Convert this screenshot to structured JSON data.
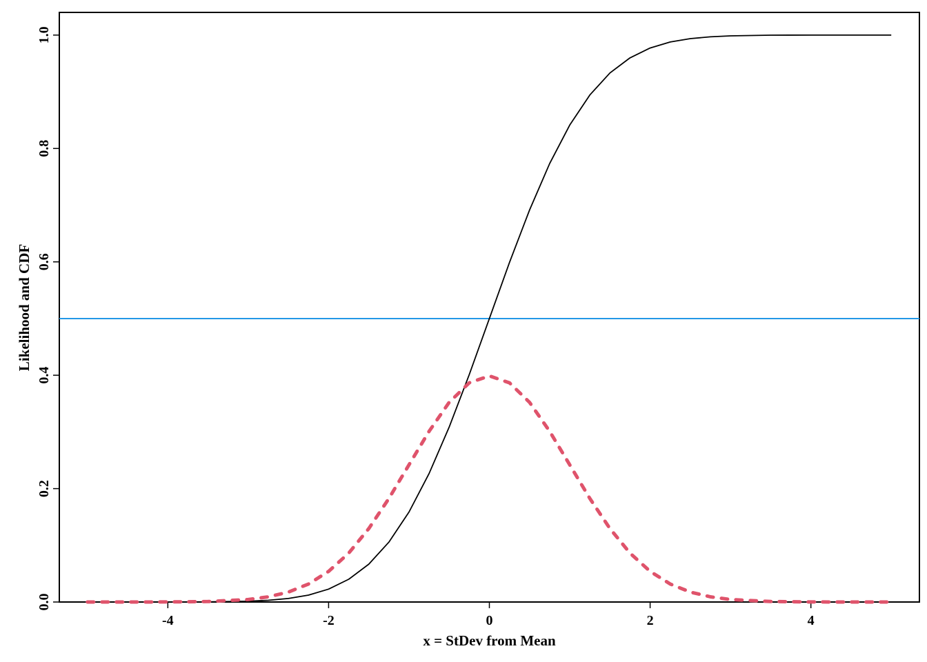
{
  "chart_data": {
    "type": "line",
    "title": "",
    "xlabel": "x = StDev from Mean",
    "ylabel": "Likelihood and CDF",
    "xlim": [
      -5.35,
      5.35
    ],
    "ylim": [
      0,
      1.04
    ],
    "x_ticks": [
      -4,
      -2,
      0,
      2,
      4
    ],
    "x_tick_labels": [
      "-4",
      "-2",
      "0",
      "2",
      "4"
    ],
    "y_ticks": [
      0,
      0.2,
      0.4,
      0.6,
      0.8,
      1.0
    ],
    "y_tick_labels": [
      "0.0",
      "0.2",
      "0.4",
      "0.6",
      "0.8",
      "1.0"
    ],
    "grid": false,
    "legend": "none",
    "x": [
      -5,
      -4.5,
      -4,
      -3.5,
      -3,
      -2.75,
      -2.5,
      -2.25,
      -2,
      -1.75,
      -1.5,
      -1.25,
      -1,
      -0.75,
      -0.5,
      -0.25,
      0,
      0.25,
      0.5,
      0.75,
      1,
      1.25,
      1.5,
      1.75,
      2,
      2.25,
      2.5,
      2.75,
      3,
      3.5,
      4,
      4.5,
      5
    ],
    "series": [
      {
        "style": "solid",
        "color": "#000000",
        "values": [
          0.0,
          0.0,
          0.0,
          0.0002,
          0.0013,
          0.003,
          0.0062,
          0.0122,
          0.0228,
          0.0401,
          0.0668,
          0.1056,
          0.1587,
          0.2266,
          0.3085,
          0.4013,
          0.5,
          0.5987,
          0.6915,
          0.7734,
          0.8413,
          0.8944,
          0.9332,
          0.9599,
          0.9772,
          0.9878,
          0.9938,
          0.997,
          0.9987,
          0.9998,
          1.0,
          1.0,
          1.0
        ]
      },
      {
        "style": "dashed",
        "color": "#df536b",
        "values": [
          0.0,
          0.0,
          0.0001,
          0.0009,
          0.0044,
          0.0091,
          0.0175,
          0.0317,
          0.054,
          0.0863,
          0.1295,
          0.1826,
          0.242,
          0.3011,
          0.3521,
          0.3867,
          0.3989,
          0.3867,
          0.3521,
          0.3011,
          0.242,
          0.1826,
          0.1295,
          0.0863,
          0.054,
          0.0317,
          0.0175,
          0.0091,
          0.0044,
          0.0009,
          0.0001,
          0.0,
          0.0
        ]
      }
    ],
    "reference_line": {
      "y": 0.5,
      "color": "#2297e6"
    }
  }
}
